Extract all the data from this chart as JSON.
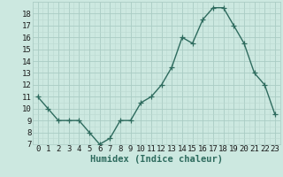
{
  "x": [
    0,
    1,
    2,
    3,
    4,
    5,
    6,
    7,
    8,
    9,
    10,
    11,
    12,
    13,
    14,
    15,
    16,
    17,
    18,
    19,
    20,
    21,
    22,
    23
  ],
  "y": [
    11,
    10,
    9,
    9,
    9,
    8,
    7,
    7.5,
    9,
    9,
    10.5,
    11,
    12,
    13.5,
    16,
    15.5,
    17.5,
    18.5,
    18.5,
    17,
    15.5,
    13,
    12,
    9.5
  ],
  "line_color": "#2e6b5e",
  "bg_color": "#cce8e0",
  "grid_major_color": "#aaccC4",
  "grid_minor_color": "#bbd8d0",
  "xlabel": "Humidex (Indice chaleur)",
  "ylim": [
    7,
    19
  ],
  "xlim": [
    -0.5,
    23.5
  ],
  "yticks": [
    7,
    8,
    9,
    10,
    11,
    12,
    13,
    14,
    15,
    16,
    17,
    18
  ],
  "xticks": [
    0,
    1,
    2,
    3,
    4,
    5,
    6,
    7,
    8,
    9,
    10,
    11,
    12,
    13,
    14,
    15,
    16,
    17,
    18,
    19,
    20,
    21,
    22,
    23
  ],
  "marker": "+",
  "marker_size": 4,
  "line_width": 1.0,
  "tick_fontsize": 6.5,
  "xlabel_fontsize": 7.5
}
